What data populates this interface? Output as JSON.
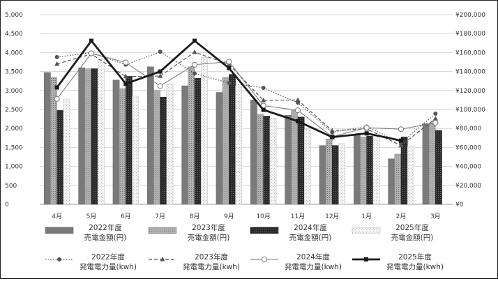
{
  "chart_data": {
    "type": "bar",
    "categories": [
      "4月",
      "5月",
      "6月",
      "7月",
      "8月",
      "9月",
      "10月",
      "11月",
      "12月",
      "1月",
      "2月",
      "3月"
    ],
    "y_left": {
      "min": 0,
      "max": 5000,
      "step": 500,
      "tick_labels": [
        "0",
        "500",
        "1,000",
        "1,500",
        "2,000",
        "2,500",
        "3,000",
        "3,500",
        "4,000",
        "4,500",
        "5,000"
      ]
    },
    "y_right": {
      "min": 0,
      "max": 200000,
      "step": 20000,
      "tick_labels": [
        "¥0",
        "¥20,000",
        "¥40,000",
        "¥60,000",
        "¥80,000",
        "¥100,000",
        "¥120,000",
        "¥140,000",
        "¥160,000",
        "¥180,000",
        "¥200,000"
      ]
    },
    "grid": true,
    "legend_position": "bottom",
    "bar_series": [
      {
        "name_line1": "2022年度",
        "name_line2": "売電金額(円)",
        "axis": "right",
        "color": "#7a7a7a",
        "values": [
          139000,
          144000,
          131000,
          145000,
          125000,
          118000,
          110000,
          94000,
          62000,
          73000,
          48000,
          85000
        ]
      },
      {
        "name_line1": "2023年度",
        "name_line2": "売電金額(円)",
        "axis": "right",
        "color": "#a6a6a6",
        "values": [
          134000,
          143000,
          122000,
          120000,
          145000,
          134000,
          95000,
          99000,
          69000,
          71000,
          53000,
          86000
        ]
      },
      {
        "name_line1": "2024年度",
        "name_line2": "売電金額(円)",
        "axis": "right",
        "color": "#2f2f2f",
        "values": [
          99000,
          143000,
          135000,
          113000,
          133000,
          137000,
          93000,
          92000,
          62000,
          72000,
          71000,
          78000
        ]
      },
      {
        "name_line1": "2025年度",
        "name_line2": "売電金額(円)",
        "axis": "right",
        "color": "#ececec",
        "values": [
          111000,
          153000,
          114000,
          127000,
          155000,
          125000,
          91000,
          79000,
          64000,
          72000,
          61000,
          null
        ]
      }
    ],
    "line_series": [
      {
        "name_line1": "2022年度",
        "name_line2": "発電電力量(kwh)",
        "axis": "left",
        "style": "dotted",
        "marker": "circle-filled",
        "color": "#555555",
        "values": [
          3880,
          4000,
          3680,
          4020,
          3450,
          3200,
          3070,
          2680,
          1900,
          2050,
          1620,
          2390
        ]
      },
      {
        "name_line1": "2023年度",
        "name_line2": "発電電力量(kwh)",
        "axis": "left",
        "style": "dashed",
        "marker": "triangle-filled",
        "color": "#555555",
        "values": [
          3700,
          3960,
          3370,
          3380,
          4010,
          3690,
          2740,
          2750,
          1940,
          1990,
          1550,
          2260
        ]
      },
      {
        "name_line1": "2024年度",
        "name_line2": "発電電力量(kwh)",
        "axis": "left",
        "style": "solid-thin",
        "marker": "circle-open",
        "color": "#777777",
        "values": [
          2780,
          3980,
          3740,
          3120,
          3680,
          3760,
          2600,
          2480,
          1780,
          2020,
          1980,
          2150
        ]
      },
      {
        "name_line1": "2025年度",
        "name_line2": "発電電力量(kwh)",
        "axis": "left",
        "style": "solid-thick",
        "marker": "square-filled",
        "color": "#1a1a1a",
        "values": [
          3080,
          4310,
          3180,
          3500,
          4310,
          3590,
          2490,
          2190,
          1770,
          1870,
          1680,
          null
        ]
      }
    ]
  }
}
